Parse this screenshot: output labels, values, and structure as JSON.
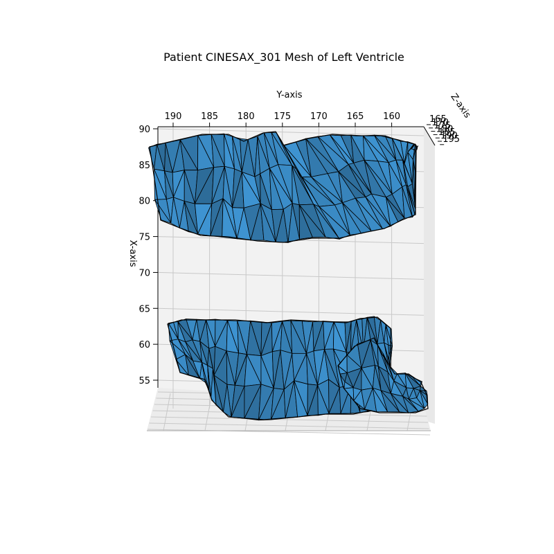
{
  "chart_data": {
    "type": "3d-surface-mesh",
    "title": "Patient CINESAX_301 Mesh of Left Ventricle",
    "xlabel": "X-axis",
    "ylabel": "Y-axis",
    "zlabel": "Z-axis",
    "x_ticks": [
      55,
      60,
      65,
      70,
      75,
      80,
      85,
      90
    ],
    "y_ticks": [
      190,
      185,
      180,
      175,
      170,
      165,
      160
    ],
    "z_ticks": [
      165,
      170,
      175,
      180,
      185,
      190,
      195
    ],
    "x_tick_labels": [
      "55",
      "60",
      "65",
      "70",
      "75",
      "80",
      "85",
      "90"
    ],
    "y_tick_labels": [
      "190",
      "185",
      "180",
      "175",
      "170",
      "165",
      "160"
    ],
    "z_tick_labels": [
      "165",
      "170",
      "175",
      "180",
      "185",
      "190",
      "195"
    ],
    "xlim": [
      52,
      90.5
    ],
    "ylim": [
      158,
      192
    ],
    "surfaces": [
      {
        "part": "upper",
        "x_range": [
          75,
          90
        ],
        "y_range": [
          159,
          192
        ]
      },
      {
        "part": "lower",
        "x_range": [
          52,
          63
        ],
        "y_range": [
          159,
          191
        ]
      }
    ],
    "face_color": "#3a8ac4",
    "edge_color": "#000000",
    "pane_color": "#f2f2f2",
    "grid": true
  }
}
